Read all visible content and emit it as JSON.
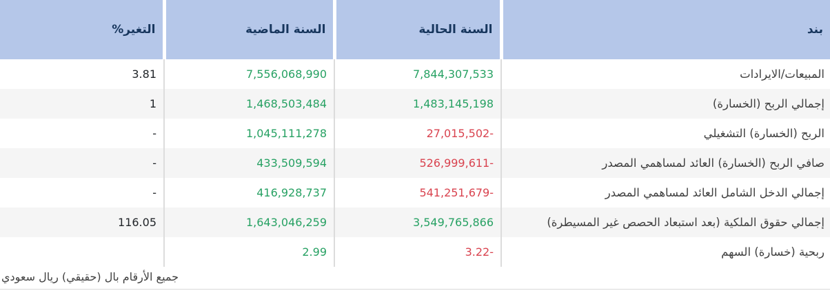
{
  "table": {
    "columns": [
      {
        "key": "item",
        "label": "بند"
      },
      {
        "key": "current",
        "label": "السنة الحالية"
      },
      {
        "key": "previous",
        "label": "السنة الماضية"
      },
      {
        "key": "change",
        "label": "التغير%"
      }
    ],
    "rows": [
      {
        "item": "المبيعات/الايرادات",
        "current": {
          "text": "7,844,307,533",
          "color": "green"
        },
        "previous": {
          "text": "7,556,068,990",
          "color": "green"
        },
        "change": "3.81"
      },
      {
        "item": "إجمالي الربح (الخسارة)",
        "current": {
          "text": "1,483,145,198",
          "color": "green"
        },
        "previous": {
          "text": "1,468,503,484",
          "color": "green"
        },
        "change": "1"
      },
      {
        "item": "الربح (الخسارة) التشغيلي",
        "current": {
          "text": "27,015,502-",
          "color": "red"
        },
        "previous": {
          "text": "1,045,111,278",
          "color": "green"
        },
        "change": "-"
      },
      {
        "item": "صافي الربح (الخسارة) العائد لمساهمي المصدر",
        "current": {
          "text": "526,999,611-",
          "color": "red"
        },
        "previous": {
          "text": "433,509,594",
          "color": "green"
        },
        "change": "-"
      },
      {
        "item": "إجمالي الدخل الشامل العائد لمساهمي المصدر",
        "current": {
          "text": "541,251,679-",
          "color": "red"
        },
        "previous": {
          "text": "416,928,737",
          "color": "green"
        },
        "change": "-"
      },
      {
        "item": "إجمالي حقوق الملكية (بعد استبعاد الحصص غير المسيطرة)",
        "current": {
          "text": "3,549,765,866",
          "color": "green"
        },
        "previous": {
          "text": "1,643,046,259",
          "color": "green"
        },
        "change": "116.05"
      },
      {
        "item": "ربحية (خسارة) السهم",
        "current": {
          "text": "3.22-",
          "color": "red"
        },
        "previous": {
          "text": "2.99",
          "color": "green"
        },
        "change": ""
      }
    ]
  },
  "footer": {
    "note": "جميع الأرقام بال (حقيقي) ريال سعودي"
  },
  "colors": {
    "header_bg": "#b5c7e9",
    "header_text": "#17365d",
    "positive_value": "#27a163",
    "negative_value": "#d9434f",
    "alt_row_bg": "#f5f5f5",
    "separator": "#dcdcdc"
  }
}
